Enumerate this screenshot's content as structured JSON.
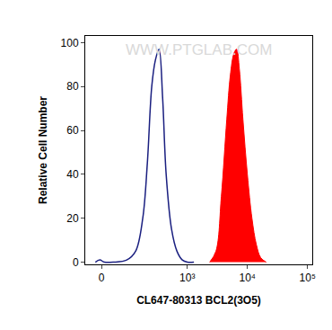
{
  "chart_data": {
    "type": "line",
    "x_label": "CL647-80313 BCL2(3O5)",
    "y_label": "Relative Cell Number",
    "annotations": [
      "WWW.PTGLAB.COM"
    ],
    "log": "x",
    "xlim": [
      -50,
      120000
    ],
    "xticks": [
      0,
      {
        "value": 1000,
        "label": "10³"
      },
      {
        "value": 10000,
        "label": "10⁴"
      },
      {
        "value": 100000,
        "label": "10⁵"
      }
    ],
    "ylim": [
      -1,
      103
    ],
    "yticks": [
      0,
      20,
      40,
      60,
      80,
      100
    ],
    "grid": false,
    "series": [
      {
        "type": "line",
        "color": "#1a1f80",
        "x": [
          -18,
          -5,
          8,
          35,
          84,
          128,
          174,
          210,
          251,
          290,
          335,
          385,
          442,
          545,
          671,
          825,
          1000,
          1290
        ],
        "values": [
          0,
          1,
          0,
          0,
          1,
          5,
          20,
          45,
          80,
          92,
          97,
          75,
          40,
          15,
          5,
          1,
          0,
          0
        ]
      },
      {
        "type": "area",
        "color": "#ff0000",
        "x": [
          2360,
          3000,
          3690,
          4540,
          5200,
          5960,
          6620,
          7350,
          8430,
          9990,
          11900,
          14100,
          16700,
          20600
        ],
        "values": [
          0,
          5,
          30,
          65,
          85,
          95,
          97,
          88,
          65,
          40,
          20,
          8,
          2,
          0
        ]
      }
    ]
  }
}
